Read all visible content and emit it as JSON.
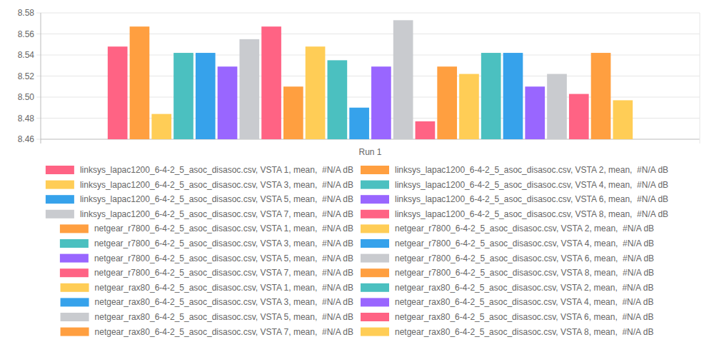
{
  "chart_data": {
    "type": "bar",
    "categories": [
      "Run 1"
    ],
    "ylim": [
      8.46,
      8.58
    ],
    "yticks": [
      8.46,
      8.48,
      {
        "value": 8.5,
        "label": "8.50"
      },
      8.52,
      8.54,
      8.56,
      8.58
    ],
    "grid": true,
    "legend": "bottom",
    "series": [
      {
        "name": "linksys_lapac1200_6-4-2_5_asoc_disasoc.csv, VSTA 1, mean,  #N/A dB",
        "color": "#ff6384",
        "values": [
          8.548
        ]
      },
      {
        "name": "linksys_lapac1200_6-4-2_5_asoc_disasoc.csv, VSTA 2, mean,  #N/A dB",
        "color": "#ff9f40",
        "values": [
          8.567
        ]
      },
      {
        "name": "linksys_lapac1200_6-4-2_5_asoc_disasoc.csv, VSTA 3, mean,  #N/A dB",
        "color": "#ffcd56",
        "values": [
          8.484
        ]
      },
      {
        "name": "linksys_lapac1200_6-4-2_5_asoc_disasoc.csv, VSTA 4, mean,  #N/A dB",
        "color": "#4bc0c0",
        "values": [
          8.542
        ]
      },
      {
        "name": "linksys_lapac1200_6-4-2_5_asoc_disasoc.csv, VSTA 5, mean,  #N/A dB",
        "color": "#36a2eb",
        "values": [
          8.542
        ]
      },
      {
        "name": "linksys_lapac1200_6-4-2_5_asoc_disasoc.csv, VSTA 6, mean,  #N/A dB",
        "color": "#9966ff",
        "values": [
          8.529
        ]
      },
      {
        "name": "linksys_lapac1200_6-4-2_5_asoc_disasoc.csv, VSTA 7, mean,  #N/A dB",
        "color": "#c9cbcf",
        "values": [
          8.555
        ]
      },
      {
        "name": "linksys_lapac1200_6-4-2_5_asoc_disasoc.csv, VSTA 8, mean,  #N/A dB",
        "color": "#ff6384",
        "values": [
          8.567
        ]
      },
      {
        "name": "netgear_r7800_6-4-2_5_asoc_disasoc.csv, VSTA 1, mean,  #N/A dB",
        "color": "#ff9f40",
        "values": [
          8.51
        ]
      },
      {
        "name": "netgear_r7800_6-4-2_5_asoc_disasoc.csv, VSTA 2, mean,  #N/A dB",
        "color": "#ffcd56",
        "values": [
          8.548
        ]
      },
      {
        "name": "netgear_r7800_6-4-2_5_asoc_disasoc.csv, VSTA 3, mean,  #N/A dB",
        "color": "#4bc0c0",
        "values": [
          8.535
        ]
      },
      {
        "name": "netgear_r7800_6-4-2_5_asoc_disasoc.csv, VSTA 4, mean,  #N/A dB",
        "color": "#36a2eb",
        "values": [
          8.49
        ]
      },
      {
        "name": "netgear_r7800_6-4-2_5_asoc_disasoc.csv, VSTA 5, mean,  #N/A dB",
        "color": "#9966ff",
        "values": [
          8.529
        ]
      },
      {
        "name": "netgear_r7800_6-4-2_5_asoc_disasoc.csv, VSTA 6, mean,  #N/A dB",
        "color": "#c9cbcf",
        "values": [
          8.573
        ]
      },
      {
        "name": "netgear_r7800_6-4-2_5_asoc_disasoc.csv, VSTA 7, mean,  #N/A dB",
        "color": "#ff6384",
        "values": [
          8.477
        ]
      },
      {
        "name": "netgear_r7800_6-4-2_5_asoc_disasoc.csv, VSTA 8, mean,  #N/A dB",
        "color": "#ff9f40",
        "values": [
          8.529
        ]
      },
      {
        "name": "netgear_rax80_6-4-2_5_asoc_disasoc.csv, VSTA 1, mean,  #N/A dB",
        "color": "#ffcd56",
        "values": [
          8.522
        ]
      },
      {
        "name": "netgear_rax80_6-4-2_5_asoc_disasoc.csv, VSTA 2, mean,  #N/A dB",
        "color": "#4bc0c0",
        "values": [
          8.542
        ]
      },
      {
        "name": "netgear_rax80_6-4-2_5_asoc_disasoc.csv, VSTA 3, mean,  #N/A dB",
        "color": "#36a2eb",
        "values": [
          8.542
        ]
      },
      {
        "name": "netgear_rax80_6-4-2_5_asoc_disasoc.csv, VSTA 4, mean,  #N/A dB",
        "color": "#9966ff",
        "values": [
          8.51
        ]
      },
      {
        "name": "netgear_rax80_6-4-2_5_asoc_disasoc.csv, VSTA 5, mean,  #N/A dB",
        "color": "#c9cbcf",
        "values": [
          8.522
        ]
      },
      {
        "name": "netgear_rax80_6-4-2_5_asoc_disasoc.csv, VSTA 6, mean,  #N/A dB",
        "color": "#ff6384",
        "values": [
          8.503
        ]
      },
      {
        "name": "netgear_rax80_6-4-2_5_asoc_disasoc.csv, VSTA 7, mean,  #N/A dB",
        "color": "#ff9f40",
        "values": [
          8.542
        ]
      },
      {
        "name": "netgear_rax80_6-4-2_5_asoc_disasoc.csv, VSTA 8, mean,  #N/A dB",
        "color": "#ffcd56",
        "values": [
          8.497
        ]
      }
    ]
  }
}
